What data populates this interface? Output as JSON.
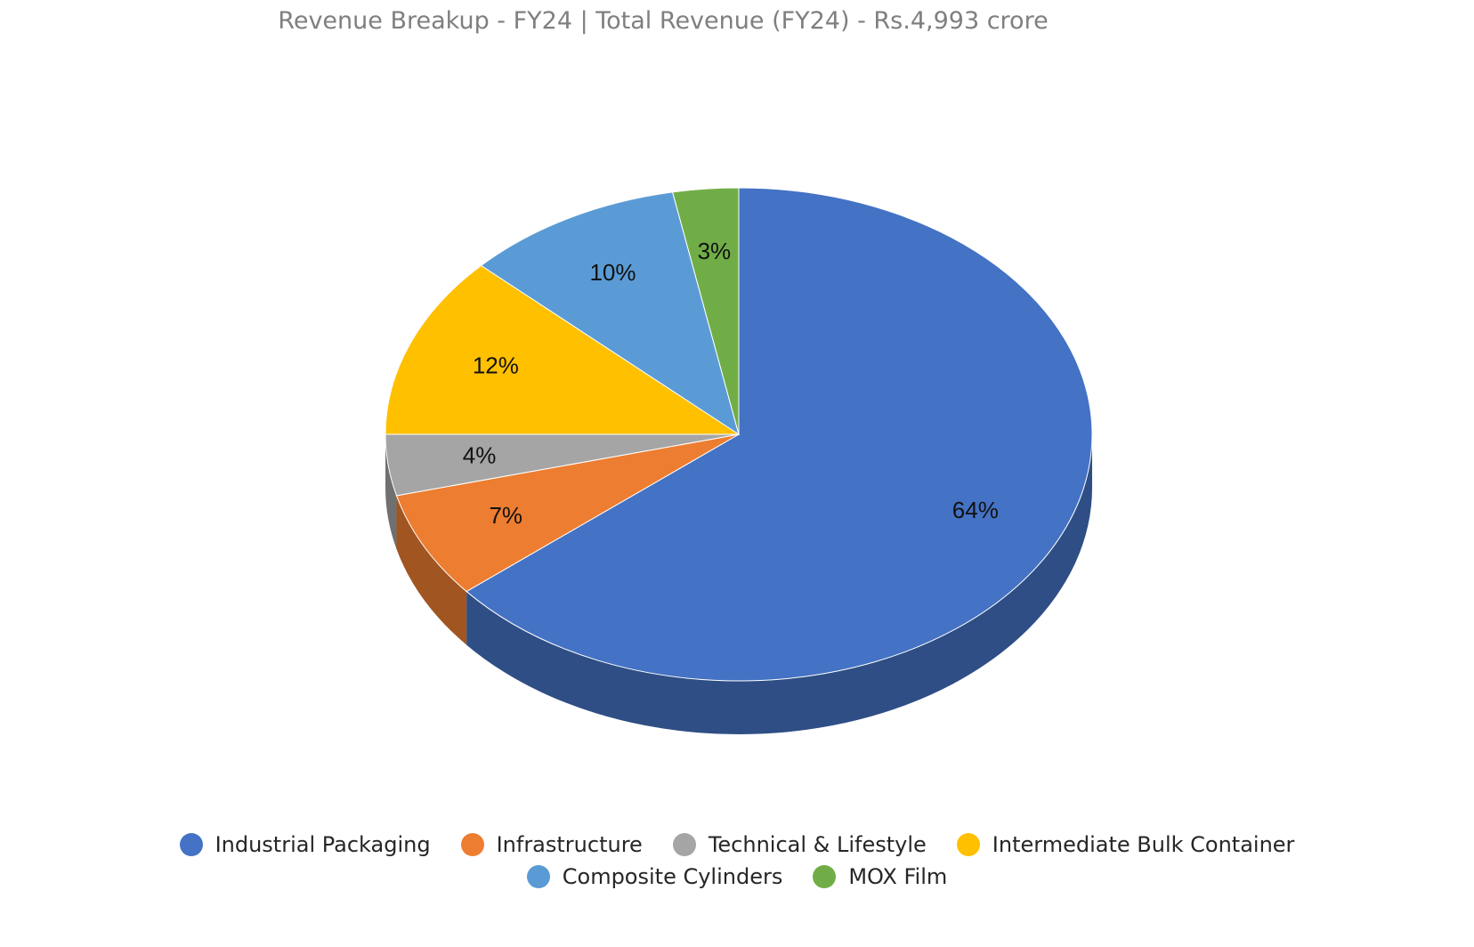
{
  "chart_data": {
    "type": "pie",
    "title": "Revenue Breakup - FY24 | Total Revenue (FY24) - Rs.4,993 crore",
    "three_d": true,
    "legend_position": "bottom",
    "slices": [
      {
        "label": "Industrial Packaging",
        "value": 64,
        "data_label": "64%",
        "color": "#4472C4"
      },
      {
        "label": "Infrastructure",
        "value": 7,
        "data_label": "7%",
        "color": "#ED7D31"
      },
      {
        "label": "Technical & Lifestyle",
        "value": 4,
        "data_label": "4%",
        "color": "#A5A5A5"
      },
      {
        "label": "Intermediate Bulk Container",
        "value": 12,
        "data_label": "12%",
        "color": "#FFC000"
      },
      {
        "label": "Composite Cylinders",
        "value": 10,
        "data_label": "10%",
        "color": "#5B9BD5"
      },
      {
        "label": "MOX Film",
        "value": 3,
        "data_label": "3%",
        "color": "#70AD47"
      }
    ]
  }
}
